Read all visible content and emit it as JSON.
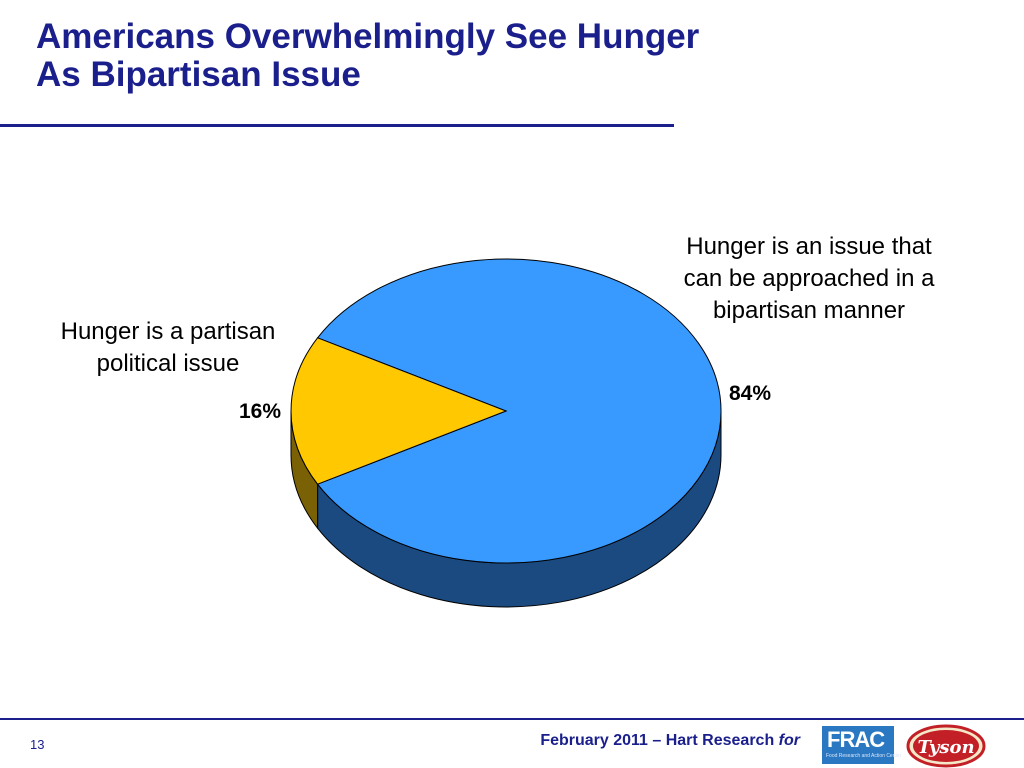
{
  "slide": {
    "title_line1": "Americans Overwhelmingly See Hunger",
    "title_line2": "As Bipartisan Issue",
    "page_number": "13",
    "footer_credit": "February 2011 – Hart Research ",
    "footer_credit_for": "for",
    "logos": {
      "frac_text": "FRAC",
      "frac_subtext": "Food Research and Action Center",
      "tyson_text": "Tyson"
    }
  },
  "colors": {
    "title": "#1a1f8c",
    "bipartisan_top": "#3899ff",
    "bipartisan_side": "#1b4a80",
    "partisan_top": "#ffc800",
    "partisan_side": "#7a6106"
  },
  "chart_data": {
    "type": "pie",
    "style": "3d",
    "slices": [
      {
        "label_lines": [
          "Hunger is an issue that",
          "can be approached in a",
          "bipartisan manner"
        ],
        "value": 84,
        "value_label": "84%",
        "color": "#3899ff",
        "side_color": "#1b4a80"
      },
      {
        "label_lines": [
          "Hunger is a partisan",
          "political issue"
        ],
        "value": 16,
        "value_label": "16%",
        "color": "#ffc800",
        "side_color": "#7a6106"
      }
    ]
  }
}
